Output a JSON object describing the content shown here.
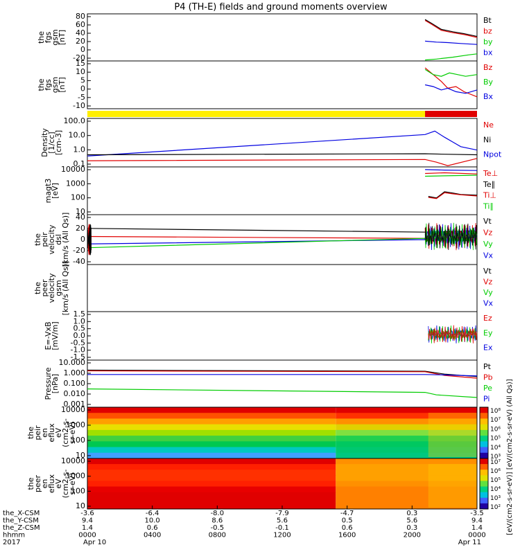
{
  "title": "P4 (TH-E) fields and ground moments overview",
  "colors": {
    "black": "#000000",
    "red": "#e00000",
    "green": "#00cc00",
    "blue": "#0000e0",
    "yellow": "#ffee00"
  },
  "chart_data": [
    {
      "type": "line",
      "name": "fgs_gsm_btotal",
      "ylabel": [
        "the",
        "fgs",
        "gsm",
        "[nT]"
      ],
      "ylim": [
        -20,
        80
      ],
      "yticks": [
        "80",
        "60",
        "40",
        "20",
        "0",
        "-20"
      ],
      "legend": [
        {
          "label": "Bt",
          "color": "#000000"
        },
        {
          "label": "bz",
          "color": "#e00000"
        },
        {
          "label": "by",
          "color": "#00cc00"
        },
        {
          "label": "bx",
          "color": "#0000e0"
        }
      ],
      "series": [
        {
          "color": "#000000",
          "points": [
            [
              20.8,
              68
            ],
            [
              21.2,
              60
            ],
            [
              21.8,
              47
            ],
            [
              22.5,
              42
            ],
            [
              23.2,
              38
            ],
            [
              24,
              32
            ]
          ]
        },
        {
          "color": "#e00000",
          "points": [
            [
              20.8,
              66
            ],
            [
              21.2,
              58
            ],
            [
              21.8,
              45
            ],
            [
              22.5,
              40
            ],
            [
              23.2,
              36
            ],
            [
              24,
              30
            ]
          ]
        },
        {
          "color": "#0000e0",
          "points": [
            [
              20.8,
              22
            ],
            [
              21.5,
              20
            ],
            [
              22.2,
              19
            ],
            [
              23,
              17
            ],
            [
              24,
              15
            ]
          ]
        },
        {
          "color": "#00cc00",
          "points": [
            [
              20.8,
              -18
            ],
            [
              21.5,
              -16
            ],
            [
              22.5,
              -12
            ],
            [
              23.5,
              -7
            ],
            [
              24,
              -5
            ]
          ]
        }
      ]
    },
    {
      "type": "line",
      "name": "fgs_gsm_components",
      "ylabel": [
        "the",
        "fgs",
        "gsm",
        "[nT]"
      ],
      "ylim": [
        -12,
        16
      ],
      "yticks": [
        "15",
        "10",
        "5",
        "0",
        "-5",
        "-10"
      ],
      "legend": [
        {
          "label": "Bz",
          "color": "#e00000"
        },
        {
          "label": "By",
          "color": "#00cc00"
        },
        {
          "label": "Bx",
          "color": "#0000e0"
        }
      ],
      "series": [
        {
          "color": "#e00000",
          "points": [
            [
              20.8,
              12
            ],
            [
              21.3,
              8
            ],
            [
              21.8,
              4
            ],
            [
              22.2,
              0
            ],
            [
              22.7,
              1
            ],
            [
              23.2,
              -2
            ],
            [
              24,
              -5
            ]
          ]
        },
        {
          "color": "#00cc00",
          "points": [
            [
              20.8,
              11
            ],
            [
              21.3,
              8
            ],
            [
              21.8,
              7
            ],
            [
              22.3,
              9
            ],
            [
              22.8,
              8
            ],
            [
              23.3,
              7
            ],
            [
              24,
              8
            ]
          ]
        },
        {
          "color": "#0000e0",
          "points": [
            [
              20.8,
              2
            ],
            [
              21.3,
              1
            ],
            [
              21.8,
              -1
            ],
            [
              22.2,
              0
            ],
            [
              22.7,
              -2
            ],
            [
              23.3,
              -3
            ],
            [
              24,
              -1
            ]
          ]
        }
      ]
    },
    {
      "type": "bar",
      "name": "mode_bar",
      "segments": [
        {
          "from": 0,
          "to": 20.8,
          "color": "#ffee00"
        },
        {
          "from": 20.8,
          "to": 24,
          "color": "#e00000"
        }
      ]
    },
    {
      "type": "line",
      "name": "density",
      "ylabel": [
        "Density",
        "[1/cc]",
        "[cm-3]"
      ],
      "log": true,
      "ylim": [
        0.1,
        130
      ],
      "yticks": [
        "100.0",
        "10.0",
        "1.0",
        "0.1"
      ],
      "legend": [
        {
          "label": "Ne",
          "color": "#e00000"
        },
        {
          "label": "Ni",
          "color": "#000000"
        },
        {
          "label": "Npot",
          "color": "#0000e0"
        }
      ],
      "series": [
        {
          "color": "#0000e0",
          "points": [
            [
              0,
              0.5
            ],
            [
              20.8,
              12
            ],
            [
              21.4,
              20
            ],
            [
              22,
              8
            ],
            [
              22.5,
              4
            ],
            [
              23,
              2
            ],
            [
              24,
              1.2
            ]
          ]
        },
        {
          "color": "#000000",
          "points": [
            [
              0,
              0.6
            ],
            [
              20.8,
              0.7
            ],
            [
              22,
              0.65
            ],
            [
              24,
              0.6
            ]
          ]
        },
        {
          "color": "#e00000",
          "points": [
            [
              0,
              0.25
            ],
            [
              20.8,
              0.3
            ],
            [
              21.5,
              0.2
            ],
            [
              22.2,
              0.12
            ],
            [
              24,
              0.35
            ]
          ]
        }
      ]
    },
    {
      "type": "line",
      "name": "temperature",
      "ylabel": [
        "magt3",
        "[eV]"
      ],
      "log": true,
      "ylim": [
        10,
        12000
      ],
      "yticks": [
        "10000",
        "1000",
        "100",
        "10"
      ],
      "legend": [
        {
          "label": "Te⊥",
          "color": "#e00000"
        },
        {
          "label": "Te∥",
          "color": "#000000"
        },
        {
          "label": "Ti⊥",
          "color": "#e00000"
        },
        {
          "label": "Ti∥",
          "color": "#00cc00"
        }
      ],
      "series": [
        {
          "color": "#0000e0",
          "points": [
            [
              20.8,
              8000
            ],
            [
              22,
              7500
            ],
            [
              24,
              7000
            ]
          ]
        },
        {
          "color": "#e00000",
          "points": [
            [
              20.8,
              4500
            ],
            [
              22,
              5000
            ],
            [
              24,
              4200
            ]
          ]
        },
        {
          "color": "#00cc00",
          "points": [
            [
              20.8,
              3000
            ],
            [
              22,
              3200
            ],
            [
              24,
              3500
            ]
          ]
        },
        {
          "color": "#000000",
          "points": [
            [
              21,
              150
            ],
            [
              21.5,
              120
            ],
            [
              22,
              300
            ],
            [
              22.5,
              250
            ],
            [
              23,
              200
            ],
            [
              24,
              180
            ]
          ]
        },
        {
          "color": "#e00000",
          "points": [
            [
              21,
              130
            ],
            [
              21.5,
              110
            ],
            [
              22,
              260
            ],
            [
              22.5,
              220
            ],
            [
              23,
              190
            ],
            [
              24,
              160
            ]
          ]
        }
      ]
    },
    {
      "type": "line",
      "name": "velocity_dsl",
      "ylabel": [
        "the",
        "peir",
        "velocity",
        "dsl",
        "[km/s (All Qs)]"
      ],
      "ylim": [
        -40,
        40
      ],
      "yticks": [
        "40",
        "20",
        "0",
        "-20",
        "-40"
      ],
      "legend": [
        {
          "label": "Vt",
          "color": "#000000"
        },
        {
          "label": "Vz",
          "color": "#e00000"
        },
        {
          "label": "Vy",
          "color": "#00cc00"
        },
        {
          "label": "Vx",
          "color": "#0000e0"
        }
      ],
      "series": [
        {
          "color": "#000000",
          "points": [
            [
              0,
              18
            ],
            [
              20.8,
              12
            ],
            [
              24,
              14
            ]
          ]
        },
        {
          "color": "#e00000",
          "points": [
            [
              0,
              5
            ],
            [
              20.8,
              2
            ],
            [
              24,
              3
            ]
          ]
        },
        {
          "color": "#0000e0",
          "points": [
            [
              0,
              -7
            ],
            [
              20.8,
              0
            ],
            [
              24,
              -2
            ]
          ]
        },
        {
          "color": "#00cc00",
          "points": [
            [
              0,
              -13
            ],
            [
              20.8,
              2
            ],
            [
              24,
              0
            ]
          ]
        }
      ]
    },
    {
      "type": "line",
      "name": "velocity_gsm",
      "ylabel": [
        "the",
        "peer",
        "velocity",
        "gsm",
        "[km/s (All Qs)]"
      ],
      "ylim": [
        -40,
        40
      ],
      "yticks": [],
      "legend": [
        {
          "label": "Vt",
          "color": "#000000"
        },
        {
          "label": "Vz",
          "color": "#e00000"
        },
        {
          "label": "Vy",
          "color": "#00cc00"
        },
        {
          "label": "Vx",
          "color": "#0000e0"
        }
      ],
      "series": []
    },
    {
      "type": "line",
      "name": "efield",
      "ylabel": [
        "E=-VxB",
        "[mV/m]"
      ],
      "ylim": [
        -1.6,
        1.6
      ],
      "yticks": [
        "1.5",
        "1.0",
        "0.5",
        "0.0",
        "-0.5",
        "-1.0",
        "-1.5"
      ],
      "legend": [
        {
          "label": "Ez",
          "color": "#e00000"
        },
        {
          "label": "Ey",
          "color": "#00cc00"
        },
        {
          "label": "Ex",
          "color": "#0000e0"
        }
      ],
      "series": []
    },
    {
      "type": "line",
      "name": "pressure",
      "ylabel": [
        "Pressure",
        "[nPa]"
      ],
      "log": true,
      "ylim": [
        0.0005,
        12
      ],
      "yticks": [
        "10.000",
        "1.000",
        "0.100",
        "0.010",
        "0.001"
      ],
      "legend": [
        {
          "label": "Pt",
          "color": "#000000"
        },
        {
          "label": "Pb",
          "color": "#e00000"
        },
        {
          "label": "Pe",
          "color": "#00cc00"
        },
        {
          "label": "Pi",
          "color": "#0000e0"
        }
      ],
      "series": [
        {
          "color": "#000000",
          "points": [
            [
              0,
              1.4
            ],
            [
              20.8,
              1.1
            ],
            [
              22,
              0.6
            ],
            [
              24,
              0.35
            ]
          ]
        },
        {
          "color": "#e00000",
          "points": [
            [
              0,
              1.2
            ],
            [
              20.8,
              1.0
            ],
            [
              22,
              0.45
            ],
            [
              24,
              0.25
            ]
          ]
        },
        {
          "color": "#0000e0",
          "points": [
            [
              0,
              0.55
            ],
            [
              20.8,
              0.55
            ],
            [
              22,
              0.5
            ],
            [
              24,
              0.4
            ]
          ]
        },
        {
          "color": "#00cc00",
          "points": [
            [
              0,
              0.025
            ],
            [
              20.8,
              0.012
            ],
            [
              21.5,
              0.007
            ],
            [
              24,
              0.004
            ]
          ]
        }
      ]
    },
    {
      "type": "heatmap",
      "name": "ion_spectrogram",
      "ylabel": [
        "the",
        "peir",
        "en",
        "eflux",
        "eV",
        "(cm2-s-",
        "sr-eV)"
      ],
      "yticks": [
        "10000",
        "1000",
        "100",
        "10"
      ],
      "cbar_ticks": [
        "10⁸",
        "10⁷",
        "10⁶",
        "10⁵",
        "10⁴",
        "10³"
      ],
      "bands_left": [
        "#e00000",
        "#ff5000",
        "#ffa000",
        "#e8e000",
        "#a0e000",
        "#40d040",
        "#00c850",
        "#00c8c0",
        "#40a0ff"
      ],
      "bands_right": [
        "#e00000",
        "#ff3000",
        "#ff9000",
        "#e0d000",
        "#80e040",
        "#20d050",
        "#00c860",
        "#00c870",
        "#00c880"
      ]
    },
    {
      "type": "heatmap",
      "name": "electron_spectrogram",
      "ylabel": [
        "the",
        "peer",
        "en",
        "eflux",
        "eV",
        "(cm2-s-",
        "sr-eV)"
      ],
      "yticks": [
        "10000",
        "1000",
        "100",
        "10"
      ],
      "cbar_ticks": [
        "10⁷",
        "10⁶",
        "10⁵",
        "10⁴",
        "10³",
        "10²"
      ],
      "bands_left": [
        "#e00000",
        "#ff2000",
        "#ff3000",
        "#ff3000",
        "#ff2000",
        "#e80000",
        "#e00000",
        "#e00000",
        "#e00000"
      ],
      "bands_right": [
        "#ff9000",
        "#ffa000",
        "#ffa000",
        "#ffa000",
        "#ff9000",
        "#ff8000",
        "#ff8000",
        "#ff8000",
        "#ff8000"
      ]
    }
  ],
  "cbar_label": "[eV/(cm2-s-sr-eV)] [eV/(cm2-s-sr-eV) (All Qs)]",
  "xaxis": {
    "rows": [
      {
        "label": "the_X-CSM",
        "values": [
          "-3.6",
          "-6.4",
          "-8.0",
          "-7.9",
          "-4.7",
          "0.3",
          "-3.5"
        ]
      },
      {
        "label": "the_Y-CSM",
        "values": [
          "9.4",
          "10.0",
          "8.6",
          "5.6",
          "0.5",
          "5.6",
          "9.4"
        ]
      },
      {
        "label": "the_Z-CSM",
        "values": [
          "1.4",
          "0.6",
          "-0.5",
          "-0.1",
          "0.6",
          "0.3",
          "1.4"
        ]
      },
      {
        "label": "hhmm",
        "values": [
          "0000",
          "0400",
          "0800",
          "1200",
          "1600",
          "2000",
          "0000"
        ]
      },
      {
        "label": "2017",
        "values": [
          "Apr 10",
          "",
          "",
          "",
          "",
          "",
          "Apr 11"
        ]
      }
    ]
  }
}
